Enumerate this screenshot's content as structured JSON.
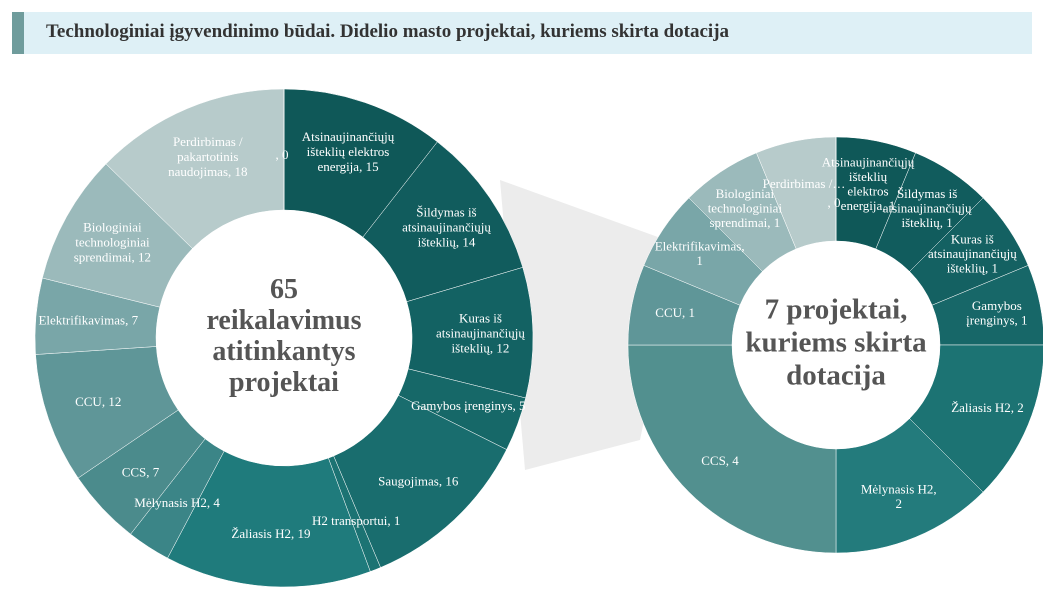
{
  "page_title": "Technologiniai įgyvendinimo būdai. Didelio masto projektai, kuriems skirta dotacija",
  "chart_data": [
    {
      "type": "donut",
      "center_label": [
        "65",
        "reikalavimus",
        "atitinkantys",
        "projektai"
      ],
      "values": [
        15,
        14,
        12,
        5,
        16,
        1,
        19,
        4,
        7,
        12,
        7,
        12,
        18,
        0
      ],
      "value_labels": [
        "Atsinaujinančiųjų išteklių elektros energija, 15",
        "Šildymas iš atsinaujinančiųjų išteklių, 14",
        "Kuras iš atsinaujinančiųjų išteklių, 12",
        "Gamybos įrenginys, 5",
        "Saugojimas, 16",
        "H2 transportui, 1",
        "Žaliasis H2, 19",
        "Mėlynasis H2, 4",
        "CCS, 7",
        "CCU, 12",
        "Elektrifikavimas, 7",
        "Biologiniai technologiniai sprendimai, 12",
        "Perdirbimas / pakartotinis naudojimas, 18",
        ", 0"
      ],
      "colors": [
        "#0f5858",
        "#115c5d",
        "#136263",
        "#166868",
        "#196d6e",
        "#1c7373",
        "#1f7b7c",
        "#3b8587",
        "#4b8b8c",
        "#5f9698",
        "#79a6a8",
        "#9bbabb",
        "#b7cbcb",
        "#c8d6d6"
      ]
    },
    {
      "type": "donut",
      "center_label": [
        "7 projektai,",
        "kuriems skirta",
        "dotacija"
      ],
      "values": [
        1,
        1,
        1,
        1,
        2,
        2,
        4,
        1,
        1,
        1,
        1,
        0
      ],
      "value_labels": [
        "Atsinaujinančiųjų išteklių elektros energija, 1",
        "Šildymas iš atsinaujinančiųjų išteklių, 1",
        "Kuras iš atsinaujinančiųjų išteklių, 1",
        "Gamybos įrenginys, 1",
        "Žaliasis H2, 2",
        "Mėlynasis H2, 2",
        "CCS, 4",
        "CCU, 1",
        "Elektrifikavimas, 1",
        "Biologiniai technologiniai sprendimai, 1",
        "Perdirbimas /…",
        ", 0"
      ],
      "colors": [
        "#0f5858",
        "#115c5d",
        "#146162",
        "#176768",
        "#1c7373",
        "#237b7c",
        "#52908f",
        "#5f9698",
        "#79a6a8",
        "#9bbabb",
        "#b7cbcb",
        "#c8d6d6"
      ]
    }
  ]
}
